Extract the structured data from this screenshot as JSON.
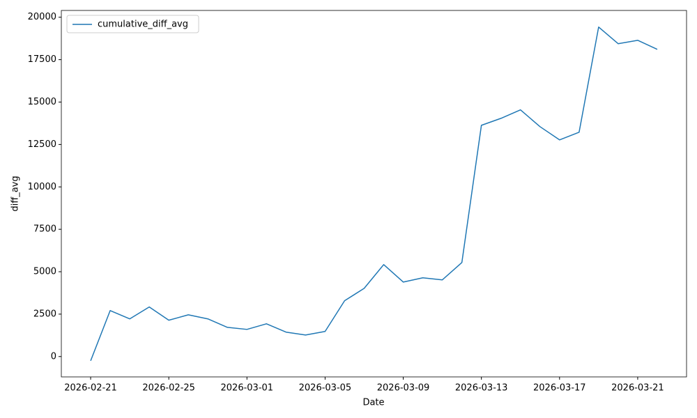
{
  "chart_data": {
    "type": "line",
    "x_label": "Date",
    "y_label": "diff_avg",
    "x": [
      "2026-02-21",
      "2026-02-22",
      "2026-02-23",
      "2026-02-24",
      "2026-02-25",
      "2026-02-26",
      "2026-02-27",
      "2026-02-28",
      "2026-03-01",
      "2026-03-02",
      "2026-03-03",
      "2026-03-04",
      "2026-03-05",
      "2026-03-06",
      "2026-03-07",
      "2026-03-08",
      "2026-03-09",
      "2026-03-10",
      "2026-03-11",
      "2026-03-12",
      "2026-03-13",
      "2026-03-14",
      "2026-03-15",
      "2026-03-16",
      "2026-03-17",
      "2026-03-18",
      "2026-03-19",
      "2026-03-20",
      "2026-03-21",
      "2026-03-22"
    ],
    "series": [
      {
        "name": "cumulative_diff_avg",
        "color": "#1f77b4",
        "values": [
          -250,
          2710,
          2220,
          2920,
          2140,
          2460,
          2220,
          1720,
          1600,
          1930,
          1440,
          1270,
          1480,
          3290,
          4020,
          5420,
          4390,
          4640,
          4520,
          5540,
          13630,
          14040,
          14540,
          13550,
          12770,
          13220,
          19420,
          18440,
          18640,
          18110
        ]
      }
    ],
    "xlim": [
      "2026-02-19T12:00",
      "2026-03-23T12:00"
    ],
    "xticks": [
      "2026-02-21",
      "2026-02-25",
      "2026-03-01",
      "2026-03-05",
      "2026-03-09",
      "2026-03-13",
      "2026-03-17",
      "2026-03-21"
    ],
    "ylim": [
      -1200,
      20400
    ],
    "yticks": [
      0,
      2500,
      5000,
      7500,
      10000,
      12500,
      15000,
      17500,
      20000
    ],
    "legend": "upper left"
  }
}
